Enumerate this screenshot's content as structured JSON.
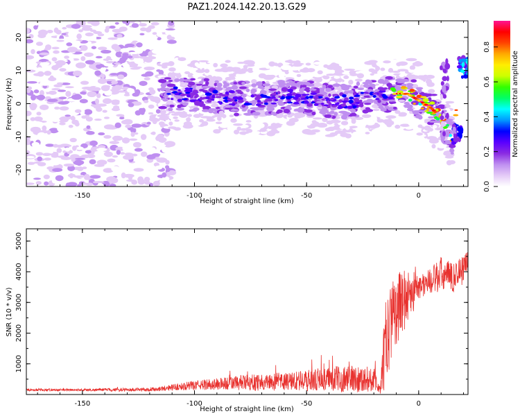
{
  "title": "PAZ1.2024.142.20.13.G29",
  "chart_data": [
    {
      "type": "heatmap",
      "xlabel": "Height of straight line (km)",
      "ylabel": "Frequency (Hz)",
      "xlim": [
        -175,
        22
      ],
      "ylim": [
        -25,
        25
      ],
      "xticks": [
        -150,
        -100,
        -50,
        0
      ],
      "yticks": [
        -20,
        -10,
        0,
        10,
        20
      ],
      "colorbar": {
        "label": "Normalized spectral amplitude",
        "range": [
          0.0,
          0.95
        ],
        "ticks": [
          0.0,
          0.2,
          0.4,
          0.6,
          0.8
        ],
        "colormap": [
          "#ffffff",
          "#e4caf7",
          "#bf8ff0",
          "#8a2be2",
          "#5a00ff",
          "#0000ff",
          "#0099ff",
          "#00ffff",
          "#00ff66",
          "#33ff00",
          "#ccff00",
          "#ffee00",
          "#ffaa00",
          "#ff4400",
          "#ff0000",
          "#ff1493"
        ]
      },
      "signal_track": {
        "x": [
          -110,
          -100,
          -90,
          -80,
          -70,
          -60,
          -50,
          -40,
          -30,
          -20,
          -10,
          -5,
          0,
          5,
          10,
          15,
          20
        ],
        "y": [
          3,
          2.5,
          2,
          1.5,
          1.5,
          2,
          2,
          1,
          0.5,
          2.5,
          3,
          3,
          1,
          -1,
          -4,
          -11,
          10
        ]
      }
    },
    {
      "type": "line",
      "xlabel": "Height of straight line (km)",
      "ylabel": "SNR (10 * v/v)",
      "xlim": [
        -175,
        22
      ],
      "ylim": [
        0,
        5400
      ],
      "xticks": [
        -150,
        -100,
        -50,
        0
      ],
      "yticks": [
        1000,
        2000,
        3000,
        4000,
        5000
      ],
      "line_color": "#e8312e",
      "envelope": {
        "x": [
          -175,
          -150,
          -120,
          -100,
          -80,
          -60,
          -50,
          -40,
          -30,
          -20,
          -17,
          -15,
          -12,
          -10,
          -5,
          0,
          5,
          10,
          15,
          20,
          22
        ],
        "mean": [
          150,
          150,
          160,
          300,
          380,
          420,
          450,
          500,
          520,
          480,
          200,
          1500,
          2500,
          2800,
          3200,
          3500,
          3700,
          3900,
          3800,
          4100,
          4400
        ],
        "amplitude": [
          40,
          40,
          60,
          150,
          250,
          300,
          350,
          400,
          450,
          400,
          200,
          1500,
          1200,
          1200,
          900,
          500,
          400,
          600,
          500,
          500,
          300
        ]
      }
    }
  ]
}
